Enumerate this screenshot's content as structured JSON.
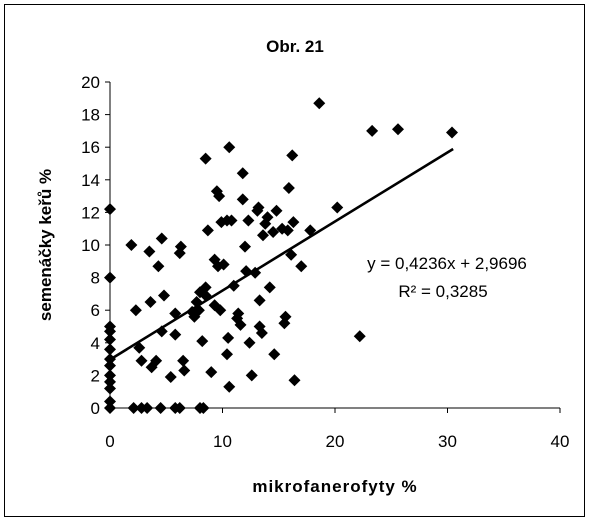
{
  "chart_data": {
    "type": "scatter",
    "title": "Obr. 21",
    "xlabel": "mikrofanerofyty %",
    "ylabel": "semenáčky keřů %",
    "xlim": [
      0,
      40
    ],
    "ylim": [
      0,
      20
    ],
    "xticks": [
      "0",
      "10",
      "20",
      "30",
      "40"
    ],
    "yticks": [
      "0",
      "2",
      "4",
      "6",
      "8",
      "10",
      "12",
      "14",
      "16",
      "18",
      "20"
    ],
    "grid": false,
    "legend": "none",
    "marker": "diamond",
    "marker_color": "#000000",
    "trendline": {
      "slope": 0.4236,
      "intercept": 2.9696,
      "x_range": [
        0,
        30.5
      ],
      "equation_label": "y = 0,4236x + 2,9696",
      "r2_label": "R² = 0,3285"
    },
    "points": [
      [
        0,
        0
      ],
      [
        0,
        0.4
      ],
      [
        0,
        1.2
      ],
      [
        0,
        1.6
      ],
      [
        0,
        2.0
      ],
      [
        0,
        2.6
      ],
      [
        0,
        3.0
      ],
      [
        0,
        3.6
      ],
      [
        0,
        4.2
      ],
      [
        0,
        4.7
      ],
      [
        0,
        5.0
      ],
      [
        0,
        8.0
      ],
      [
        0,
        12.2
      ],
      [
        2.1,
        0
      ],
      [
        2.8,
        0
      ],
      [
        3.3,
        0
      ],
      [
        4.5,
        0
      ],
      [
        5.8,
        0
      ],
      [
        6.2,
        0
      ],
      [
        8.0,
        0
      ],
      [
        8.3,
        0
      ],
      [
        1.9,
        10.0
      ],
      [
        2.3,
        6.0
      ],
      [
        2.6,
        3.7
      ],
      [
        2.8,
        2.9
      ],
      [
        3.5,
        9.6
      ],
      [
        3.6,
        6.5
      ],
      [
        3.7,
        2.5
      ],
      [
        4.1,
        2.9
      ],
      [
        4.3,
        8.7
      ],
      [
        4.6,
        10.4
      ],
      [
        4.6,
        4.7
      ],
      [
        4.8,
        6.9
      ],
      [
        5.4,
        1.9
      ],
      [
        5.8,
        5.8
      ],
      [
        5.8,
        4.5
      ],
      [
        6.2,
        9.5
      ],
      [
        6.3,
        9.9
      ],
      [
        6.5,
        2.9
      ],
      [
        6.6,
        2.3
      ],
      [
        7.3,
        5.9
      ],
      [
        7.5,
        5.6
      ],
      [
        7.7,
        6.5
      ],
      [
        7.9,
        6.0
      ],
      [
        8.0,
        7.1
      ],
      [
        8.2,
        4.1
      ],
      [
        8.5,
        7.4
      ],
      [
        8.5,
        6.9
      ],
      [
        8.5,
        15.3
      ],
      [
        8.7,
        10.9
      ],
      [
        9.0,
        2.2
      ],
      [
        9.3,
        9.1
      ],
      [
        9.3,
        6.3
      ],
      [
        9.5,
        13.3
      ],
      [
        9.6,
        8.7
      ],
      [
        9.7,
        13.0
      ],
      [
        9.8,
        6.0
      ],
      [
        9.9,
        11.4
      ],
      [
        10.1,
        8.8
      ],
      [
        10.4,
        11.5
      ],
      [
        10.6,
        16.0
      ],
      [
        10.8,
        11.5
      ],
      [
        10.6,
        1.3
      ],
      [
        10.5,
        4.3
      ],
      [
        10.4,
        3.3
      ],
      [
        11.0,
        7.5
      ],
      [
        11.3,
        5.5
      ],
      [
        11.4,
        5.8
      ],
      [
        11.6,
        5.1
      ],
      [
        11.8,
        14.4
      ],
      [
        11.8,
        12.8
      ],
      [
        12.0,
        9.9
      ],
      [
        12.1,
        8.4
      ],
      [
        12.3,
        11.5
      ],
      [
        12.4,
        4.0
      ],
      [
        12.6,
        2.0
      ],
      [
        12.9,
        8.3
      ],
      [
        13.1,
        12.1
      ],
      [
        13.2,
        12.3
      ],
      [
        13.3,
        6.6
      ],
      [
        13.3,
        5.0
      ],
      [
        13.5,
        4.6
      ],
      [
        13.6,
        10.6
      ],
      [
        13.8,
        11.3
      ],
      [
        14.0,
        11.7
      ],
      [
        14.2,
        7.4
      ],
      [
        14.5,
        10.8
      ],
      [
        14.8,
        12.1
      ],
      [
        14.6,
        3.3
      ],
      [
        15.3,
        11.0
      ],
      [
        15.5,
        5.2
      ],
      [
        15.6,
        5.6
      ],
      [
        15.8,
        10.9
      ],
      [
        15.9,
        13.5
      ],
      [
        16.2,
        15.5
      ],
      [
        16.1,
        9.4
      ],
      [
        16.3,
        11.4
      ],
      [
        16.4,
        1.7
      ],
      [
        17.0,
        8.7
      ],
      [
        17.8,
        10.9
      ],
      [
        18.6,
        18.7
      ],
      [
        20.2,
        12.3
      ],
      [
        22.2,
        4.4
      ],
      [
        23.3,
        17.0
      ],
      [
        25.6,
        17.1
      ],
      [
        30.4,
        16.9
      ]
    ]
  }
}
